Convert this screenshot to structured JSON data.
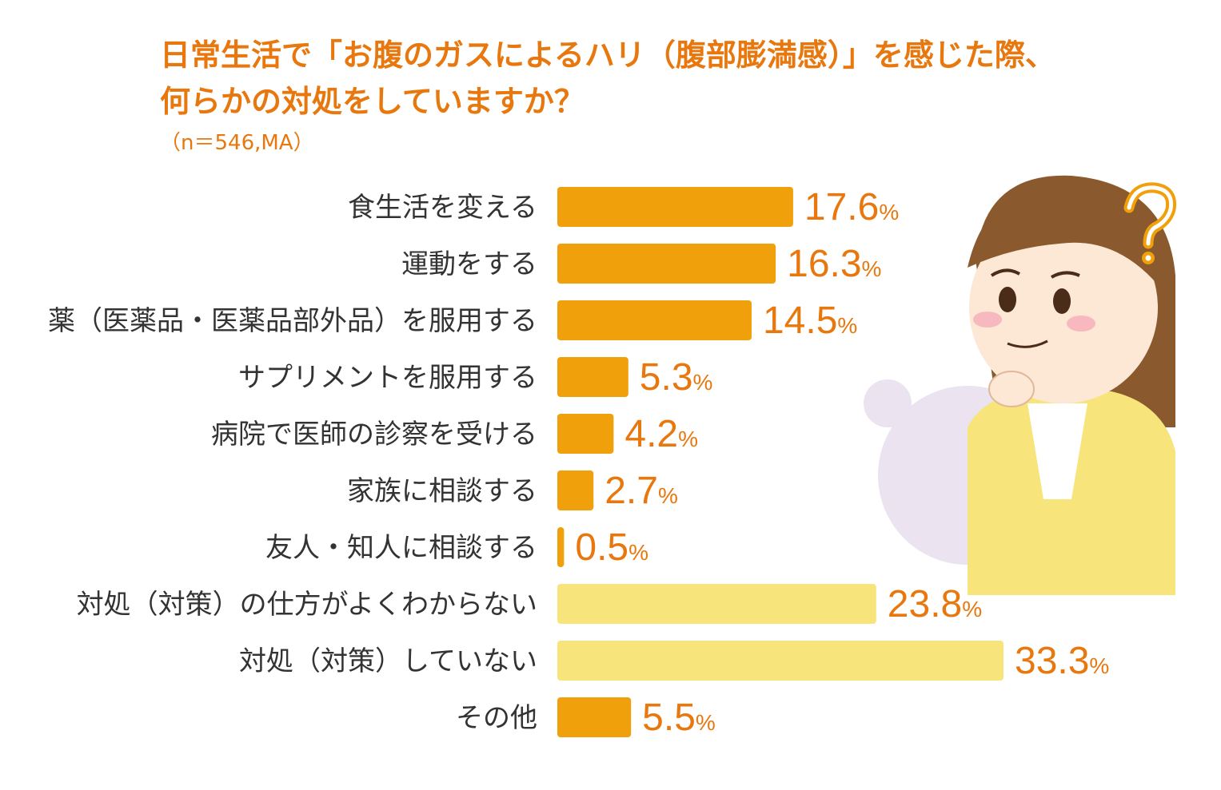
{
  "title": {
    "line1": "日常生活で「お腹のガスによるハリ（腹部膨満感）」を感じた際、",
    "line2": "何らかの対処をしていますか？"
  },
  "note": "（n＝546,MA）",
  "percent_sign": "%",
  "colors": {
    "accent": "#e8780e",
    "bar_orange": "#f0a00a",
    "bar_yellow": "#f7e47a",
    "label_text": "#333333"
  },
  "chart_data": {
    "type": "bar",
    "orientation": "horizontal",
    "title": "日常生活で「お腹のガスによるハリ（腹部膨満感）」を感じた際、何らかの対処をしていますか？",
    "unit": "%",
    "categories": [
      "食生活を変える",
      "運動をする",
      "薬（医薬品・医薬品部外品）を服用する",
      "サプリメントを服用する",
      "病院で医師の診察を受ける",
      "家族に相談する",
      "友人・知人に相談する",
      "対処（対策）の仕方がよくわからない",
      "対処（対策）していない",
      "その他"
    ],
    "values": [
      17.6,
      16.3,
      14.5,
      5.3,
      4.2,
      2.7,
      0.5,
      23.8,
      33.3,
      5.5
    ],
    "value_labels": [
      "17.6",
      "16.3",
      "14.5",
      "5.3",
      "4.2",
      "2.7",
      "0.5",
      "23.8",
      "33.3",
      "5.5"
    ],
    "bar_color_keys": [
      "orange",
      "orange",
      "orange",
      "orange",
      "orange",
      "orange",
      "orange",
      "yellow",
      "yellow",
      "orange"
    ],
    "xlim": [
      0,
      33.3
    ],
    "grid": false
  }
}
